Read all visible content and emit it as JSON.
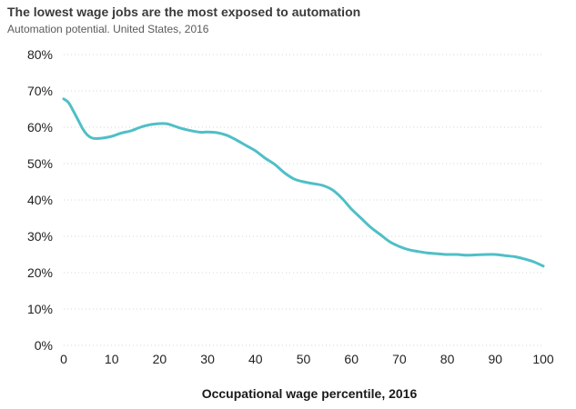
{
  "chart_data": {
    "type": "line",
    "title": "The lowest wage jobs are the most exposed to automation",
    "subtitle": "Automation potential. United States, 2016",
    "xlabel": "Occupational wage percentile, 2016",
    "ylabel": "",
    "xlim": [
      0,
      100
    ],
    "ylim": [
      0,
      80
    ],
    "x_ticks": [
      "0",
      "10",
      "20",
      "30",
      "40",
      "50",
      "60",
      "70",
      "80",
      "90",
      "100"
    ],
    "y_ticks": [
      "0%",
      "10%",
      "20%",
      "30%",
      "40%",
      "50%",
      "60%",
      "70%",
      "80%"
    ],
    "grid": true,
    "line_color": "#4fbfc6",
    "series": [
      {
        "x": [
          0,
          1,
          2,
          3,
          4,
          5,
          6,
          7,
          8,
          10,
          12,
          14,
          16,
          18,
          20,
          21,
          22,
          24,
          26,
          28,
          29,
          30,
          32,
          34,
          36,
          38,
          40,
          42,
          44,
          46,
          48,
          50,
          52,
          54,
          56,
          58,
          60,
          62,
          64,
          66,
          68,
          70,
          72,
          74,
          76,
          78,
          80,
          82,
          84,
          86,
          88,
          90,
          92,
          94,
          96,
          98,
          100
        ],
        "values": [
          67.8,
          66.8,
          64.5,
          62.0,
          59.5,
          57.8,
          57.0,
          56.9,
          57.0,
          57.5,
          58.4,
          59.0,
          60.0,
          60.7,
          61.0,
          61.0,
          60.8,
          59.9,
          59.2,
          58.7,
          58.6,
          58.7,
          58.5,
          57.8,
          56.5,
          55.0,
          53.5,
          51.5,
          49.8,
          47.5,
          45.8,
          45.0,
          44.5,
          44.0,
          42.8,
          40.5,
          37.5,
          35.0,
          32.5,
          30.5,
          28.5,
          27.2,
          26.3,
          25.8,
          25.4,
          25.2,
          25.0,
          25.0,
          24.8,
          24.9,
          25.0,
          25.0,
          24.7,
          24.4,
          23.8,
          23.0,
          21.8
        ]
      }
    ]
  }
}
